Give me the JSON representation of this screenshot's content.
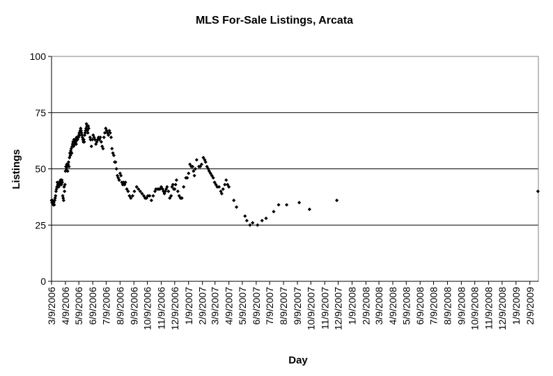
{
  "chart_data": {
    "type": "scatter",
    "title": "MLS For-Sale Listings, Arcata",
    "xlabel": "Day",
    "ylabel": "Listings",
    "ylim": [
      0,
      100
    ],
    "yticks": [
      0,
      25,
      50,
      75,
      100
    ],
    "xlim": [
      "2006-03-09",
      "2009-02-28"
    ],
    "xtick_labels": [
      "3/9/2006",
      "4/9/2006",
      "5/9/2006",
      "6/9/2006",
      "7/9/2006",
      "8/9/2006",
      "9/9/2006",
      "10/9/2006",
      "11/9/2006",
      "12/9/2006",
      "1/9/2007",
      "2/9/2007",
      "3/9/2007",
      "4/9/2007",
      "5/9/2007",
      "6/9/2007",
      "7/9/2007",
      "8/9/2007",
      "9/9/2007",
      "10/9/2007",
      "11/9/2007",
      "12/9/2007",
      "1/9/2008",
      "2/9/2008",
      "3/9/2008",
      "4/9/2008",
      "5/9/2008",
      "6/9/2008",
      "7/9/2008",
      "8/9/2008",
      "9/9/2008",
      "10/9/2008",
      "11/9/2008",
      "12/9/2008",
      "1/9/2009",
      "2/9/2009"
    ],
    "grid": "horizontal",
    "series": [
      {
        "name": "Listings",
        "marker": "diamond",
        "color": "#000000",
        "points": [
          [
            "2006-03-09",
            36
          ],
          [
            "2006-03-10",
            35
          ],
          [
            "2006-03-11",
            36
          ],
          [
            "2006-03-12",
            35
          ],
          [
            "2006-03-13",
            34
          ],
          [
            "2006-03-14",
            35
          ],
          [
            "2006-03-15",
            34
          ],
          [
            "2006-03-16",
            36
          ],
          [
            "2006-03-17",
            37
          ],
          [
            "2006-03-18",
            38
          ],
          [
            "2006-03-19",
            40
          ],
          [
            "2006-03-20",
            41
          ],
          [
            "2006-03-21",
            42
          ],
          [
            "2006-03-22",
            44
          ],
          [
            "2006-03-23",
            43
          ],
          [
            "2006-03-24",
            43
          ],
          [
            "2006-03-25",
            42
          ],
          [
            "2006-03-26",
            44
          ],
          [
            "2006-03-27",
            44
          ],
          [
            "2006-03-28",
            43
          ],
          [
            "2006-03-29",
            45
          ],
          [
            "2006-03-30",
            44
          ],
          [
            "2006-03-31",
            43
          ],
          [
            "2006-04-01",
            45
          ],
          [
            "2006-04-02",
            44
          ],
          [
            "2006-04-03",
            38
          ],
          [
            "2006-04-04",
            37
          ],
          [
            "2006-04-05",
            36
          ],
          [
            "2006-04-06",
            42
          ],
          [
            "2006-04-07",
            40
          ],
          [
            "2006-04-08",
            43
          ],
          [
            "2006-04-09",
            49
          ],
          [
            "2006-04-10",
            51
          ],
          [
            "2006-04-11",
            50
          ],
          [
            "2006-04-12",
            52
          ],
          [
            "2006-04-13",
            51
          ],
          [
            "2006-04-14",
            49
          ],
          [
            "2006-04-15",
            52
          ],
          [
            "2006-04-16",
            53
          ],
          [
            "2006-04-17",
            51
          ],
          [
            "2006-04-18",
            55
          ],
          [
            "2006-04-19",
            57
          ],
          [
            "2006-04-20",
            56
          ],
          [
            "2006-04-21",
            58
          ],
          [
            "2006-04-22",
            59
          ],
          [
            "2006-04-23",
            57
          ],
          [
            "2006-04-24",
            60
          ],
          [
            "2006-04-25",
            61
          ],
          [
            "2006-04-26",
            62
          ],
          [
            "2006-04-27",
            60
          ],
          [
            "2006-04-28",
            63
          ],
          [
            "2006-04-29",
            62
          ],
          [
            "2006-04-30",
            61
          ],
          [
            "2006-05-01",
            63
          ],
          [
            "2006-05-02",
            62
          ],
          [
            "2006-05-03",
            61
          ],
          [
            "2006-05-04",
            64
          ],
          [
            "2006-05-05",
            63
          ],
          [
            "2006-05-06",
            63
          ],
          [
            "2006-05-07",
            64
          ],
          [
            "2006-05-08",
            64
          ],
          [
            "2006-05-09",
            65
          ],
          [
            "2006-05-10",
            66
          ],
          [
            "2006-05-11",
            65
          ],
          [
            "2006-05-12",
            67
          ],
          [
            "2006-05-13",
            68
          ],
          [
            "2006-05-14",
            67
          ],
          [
            "2006-05-15",
            66
          ],
          [
            "2006-05-16",
            65
          ],
          [
            "2006-05-17",
            64
          ],
          [
            "2006-05-18",
            63
          ],
          [
            "2006-05-19",
            62
          ],
          [
            "2006-05-20",
            63
          ],
          [
            "2006-05-21",
            62
          ],
          [
            "2006-05-22",
            65
          ],
          [
            "2006-05-23",
            66
          ],
          [
            "2006-05-24",
            67
          ],
          [
            "2006-05-25",
            68
          ],
          [
            "2006-05-26",
            70
          ],
          [
            "2006-05-27",
            69
          ],
          [
            "2006-05-28",
            67
          ],
          [
            "2006-05-29",
            66
          ],
          [
            "2006-05-30",
            69
          ],
          [
            "2006-05-31",
            68
          ],
          [
            "2006-06-03",
            64
          ],
          [
            "2006-06-04",
            63
          ],
          [
            "2006-06-06",
            60
          ],
          [
            "2006-06-08",
            63
          ],
          [
            "2006-06-10",
            65
          ],
          [
            "2006-06-12",
            64
          ],
          [
            "2006-06-14",
            63
          ],
          [
            "2006-06-16",
            61
          ],
          [
            "2006-06-18",
            62
          ],
          [
            "2006-06-20",
            63
          ],
          [
            "2006-06-22",
            64
          ],
          [
            "2006-06-24",
            63
          ],
          [
            "2006-06-26",
            64
          ],
          [
            "2006-06-28",
            62
          ],
          [
            "2006-06-30",
            60
          ],
          [
            "2006-07-02",
            59
          ],
          [
            "2006-07-04",
            64
          ],
          [
            "2006-07-06",
            66
          ],
          [
            "2006-07-08",
            68
          ],
          [
            "2006-07-10",
            67
          ],
          [
            "2006-07-12",
            66
          ],
          [
            "2006-07-14",
            65
          ],
          [
            "2006-07-16",
            67
          ],
          [
            "2006-07-18",
            66
          ],
          [
            "2006-07-20",
            64
          ],
          [
            "2006-07-22",
            59
          ],
          [
            "2006-07-24",
            57
          ],
          [
            "2006-07-26",
            56
          ],
          [
            "2006-07-28",
            53
          ],
          [
            "2006-07-30",
            53
          ],
          [
            "2006-08-01",
            50
          ],
          [
            "2006-08-03",
            47
          ],
          [
            "2006-08-05",
            46
          ],
          [
            "2006-08-07",
            45
          ],
          [
            "2006-08-09",
            48
          ],
          [
            "2006-08-11",
            47
          ],
          [
            "2006-08-13",
            44
          ],
          [
            "2006-08-15",
            43
          ],
          [
            "2006-08-17",
            44
          ],
          [
            "2006-08-19",
            43
          ],
          [
            "2006-08-21",
            44
          ],
          [
            "2006-08-24",
            41
          ],
          [
            "2006-08-27",
            40
          ],
          [
            "2006-08-30",
            38
          ],
          [
            "2006-09-02",
            37
          ],
          [
            "2006-09-06",
            38
          ],
          [
            "2006-09-10",
            40
          ],
          [
            "2006-09-15",
            42
          ],
          [
            "2006-09-19",
            41
          ],
          [
            "2006-09-23",
            40
          ],
          [
            "2006-09-27",
            39
          ],
          [
            "2006-10-01",
            38
          ],
          [
            "2006-10-04",
            37
          ],
          [
            "2006-10-07",
            37
          ],
          [
            "2006-10-10",
            38
          ],
          [
            "2006-10-14",
            38
          ],
          [
            "2006-10-18",
            36
          ],
          [
            "2006-10-22",
            38
          ],
          [
            "2006-10-26",
            40
          ],
          [
            "2006-10-28",
            41
          ],
          [
            "2006-11-01",
            41
          ],
          [
            "2006-11-03",
            41
          ],
          [
            "2006-11-06",
            41
          ],
          [
            "2006-11-09",
            42
          ],
          [
            "2006-11-12",
            41
          ],
          [
            "2006-11-14",
            40
          ],
          [
            "2006-11-16",
            39
          ],
          [
            "2006-11-18",
            40
          ],
          [
            "2006-11-20",
            41
          ],
          [
            "2006-11-22",
            42
          ],
          [
            "2006-11-25",
            40
          ],
          [
            "2006-11-28",
            37
          ],
          [
            "2006-12-01",
            38
          ],
          [
            "2006-12-03",
            42
          ],
          [
            "2006-12-05",
            43
          ],
          [
            "2006-12-07",
            41
          ],
          [
            "2006-12-09",
            41
          ],
          [
            "2006-12-11",
            43
          ],
          [
            "2006-12-13",
            45
          ],
          [
            "2006-12-16",
            40
          ],
          [
            "2006-12-19",
            38
          ],
          [
            "2006-12-22",
            37
          ],
          [
            "2006-12-25",
            37
          ],
          [
            "2006-12-29",
            42
          ],
          [
            "2007-01-03",
            46
          ],
          [
            "2007-01-06",
            46
          ],
          [
            "2007-01-09",
            48
          ],
          [
            "2007-01-12",
            52
          ],
          [
            "2007-01-15",
            51
          ],
          [
            "2007-01-18",
            51
          ],
          [
            "2007-01-20",
            49
          ],
          [
            "2007-01-22",
            47
          ],
          [
            "2007-01-24",
            50
          ],
          [
            "2007-01-27",
            54
          ],
          [
            "2007-02-01",
            51
          ],
          [
            "2007-02-04",
            51
          ],
          [
            "2007-02-07",
            52
          ],
          [
            "2007-02-11",
            55
          ],
          [
            "2007-02-14",
            54
          ],
          [
            "2007-02-16",
            53
          ],
          [
            "2007-02-19",
            51
          ],
          [
            "2007-02-22",
            50
          ],
          [
            "2007-02-24",
            49
          ],
          [
            "2007-02-27",
            48
          ],
          [
            "2007-03-02",
            47
          ],
          [
            "2007-03-05",
            46
          ],
          [
            "2007-03-08",
            44
          ],
          [
            "2007-03-11",
            43
          ],
          [
            "2007-03-14",
            42
          ],
          [
            "2007-03-18",
            42
          ],
          [
            "2007-03-22",
            40
          ],
          [
            "2007-03-24",
            39
          ],
          [
            "2007-03-27",
            41
          ],
          [
            "2007-03-31",
            43
          ],
          [
            "2007-04-03",
            45
          ],
          [
            "2007-04-06",
            43
          ],
          [
            "2007-04-09",
            42
          ],
          [
            "2007-04-20",
            36
          ],
          [
            "2007-04-26",
            33
          ],
          [
            "2007-05-15",
            29
          ],
          [
            "2007-05-19",
            27
          ],
          [
            "2007-05-26",
            25
          ],
          [
            "2007-06-01",
            26
          ],
          [
            "2007-06-12",
            25
          ],
          [
            "2007-06-22",
            27
          ],
          [
            "2007-07-01",
            28
          ],
          [
            "2007-07-18",
            31
          ],
          [
            "2007-07-29",
            34
          ],
          [
            "2007-08-16",
            34
          ],
          [
            "2007-09-13",
            35
          ],
          [
            "2007-10-06",
            32
          ],
          [
            "2007-12-06",
            36
          ],
          [
            "2009-02-27",
            40
          ]
        ]
      }
    ]
  }
}
